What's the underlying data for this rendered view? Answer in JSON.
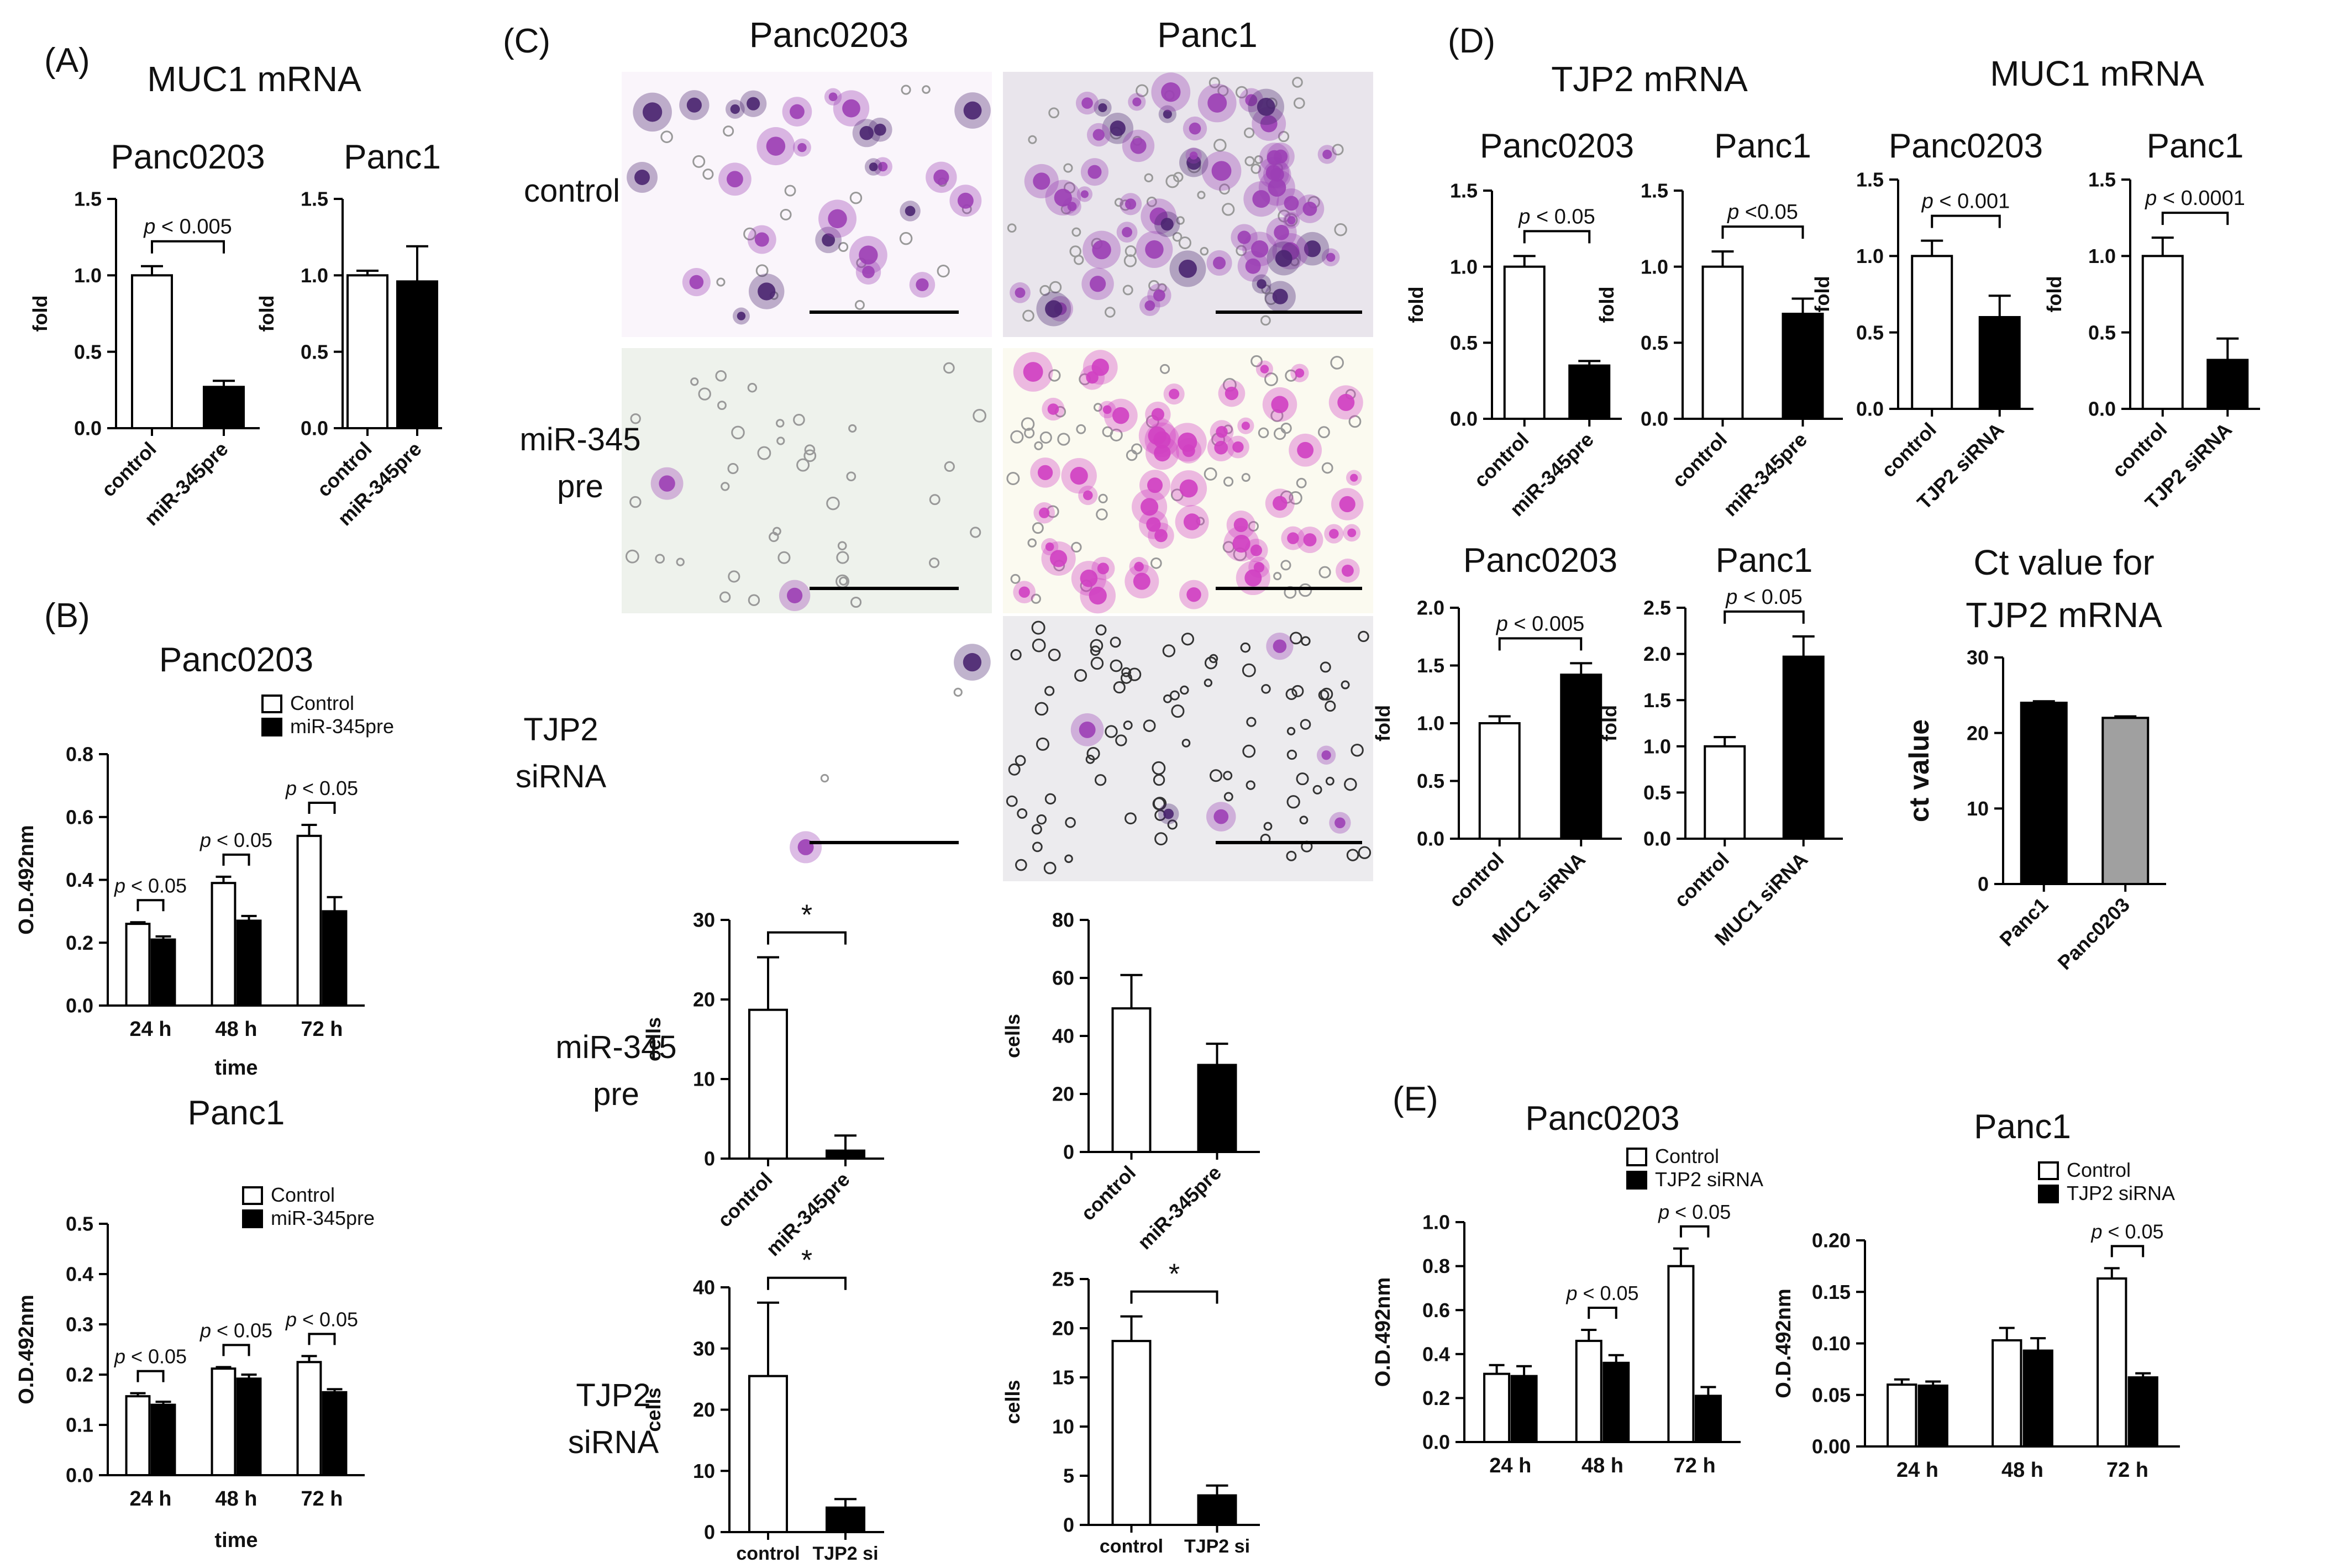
{
  "panel_labels": {
    "A": "(A)",
    "B": "(B)",
    "C": "(C)",
    "D": "(D)",
    "E": "(E)"
  },
  "titles": {
    "A_main": "MUC1 mRNA",
    "C_col1": "Panc0203",
    "C_col2": "Panc1",
    "D_tjp2": "TJP2 mRNA",
    "D_muc1": "MUC1 mRNA",
    "D_ct_line1": "Ct value for",
    "D_ct_line2": "TJP2 mRNA"
  },
  "micrograph_row_labels": [
    {
      "lines": [
        "control"
      ]
    },
    {
      "lines": [
        "miR-345",
        "pre"
      ]
    },
    {
      "lines": [
        "TJP2",
        "siRNA"
      ]
    }
  ],
  "invasion_row_labels": [
    {
      "lines": [
        "miR-345",
        "pre"
      ]
    },
    {
      "lines": [
        "TJP2",
        "siRNA"
      ]
    }
  ],
  "micrograph_tiles": [
    {
      "col": 0,
      "row": 0,
      "bg": "#faf5fb",
      "stain": "sparse-cluster"
    },
    {
      "col": 1,
      "row": 0,
      "bg": "#e9e5ec",
      "stain": "dense"
    },
    {
      "col": 0,
      "row": 1,
      "bg": "#eef2ec",
      "stain": "very-sparse"
    },
    {
      "col": 1,
      "row": 1,
      "bg": "#fbfaf0",
      "stain": "dense-pink"
    },
    {
      "col": 0,
      "row": 2,
      "bg": "#ffffff",
      "stain": "empty"
    },
    {
      "col": 1,
      "row": 2,
      "bg": "#ecebee",
      "stain": "sparse-pores"
    }
  ],
  "colors": {
    "white_bar": "#ffffff",
    "black_bar": "#000000",
    "grey_bar": "#a0a0a0",
    "axis": "#000000",
    "stain_purple": "#9c3fb5",
    "stain_magenta": "#d03fc2",
    "stain_dark": "#4a2570"
  },
  "chart_data": [
    {
      "id": "A1",
      "type": "bar",
      "title": "Panc0203",
      "ylabel": "fold",
      "categories": [
        "control",
        "miR-345pre"
      ],
      "values": [
        1.0,
        0.27
      ],
      "errors": [
        0.06,
        0.04
      ],
      "fills": [
        "white",
        "black"
      ],
      "ylim": [
        0,
        1.5
      ],
      "yticks": [
        "0.0",
        "0.5",
        "1.0",
        "1.5"
      ],
      "sig": "p < 0.005"
    },
    {
      "id": "A2",
      "type": "bar",
      "title": "Panc1",
      "ylabel": "fold",
      "categories": [
        "control",
        "miR-345pre"
      ],
      "values": [
        1.0,
        0.96
      ],
      "errors": [
        0.03,
        0.23
      ],
      "fills": [
        "white",
        "black"
      ],
      "ylim": [
        0,
        1.5
      ],
      "yticks": [
        "0.0",
        "0.5",
        "1.0",
        "1.5"
      ],
      "sig": ""
    },
    {
      "id": "B1",
      "type": "grouped-bar",
      "title": "Panc0203",
      "ylabel": "O.D.492nm",
      "xlabel": "time",
      "categories": [
        "24 h",
        "48 h",
        "72 h"
      ],
      "series": [
        {
          "name": "Control",
          "values": [
            0.26,
            0.39,
            0.54
          ],
          "errors": [
            0.005,
            0.02,
            0.035
          ]
        },
        {
          "name": "miR-345pre",
          "values": [
            0.21,
            0.27,
            0.3
          ],
          "errors": [
            0.01,
            0.015,
            0.045
          ]
        }
      ],
      "ylim": [
        0,
        0.8
      ],
      "yticks": [
        "0.0",
        "0.2",
        "0.4",
        "0.6",
        "0.8"
      ],
      "sigs": [
        "p < 0.05",
        "p < 0.05",
        "p < 0.05"
      ]
    },
    {
      "id": "B2",
      "type": "grouped-bar",
      "title": "Panc1",
      "ylabel": "O.D.492nm",
      "xlabel": "time",
      "categories": [
        "24 h",
        "48 h",
        "72 h"
      ],
      "series": [
        {
          "name": "Control",
          "values": [
            0.157,
            0.212,
            0.225
          ],
          "errors": [
            0.006,
            0.003,
            0.012
          ]
        },
        {
          "name": "miR-345pre",
          "values": [
            0.14,
            0.192,
            0.165
          ],
          "errors": [
            0.006,
            0.008,
            0.006
          ]
        }
      ],
      "ylim": [
        0,
        0.5
      ],
      "yticks": [
        "0.0",
        "0.1",
        "0.2",
        "0.3",
        "0.4",
        "0.5"
      ],
      "sigs": [
        "p < 0.05",
        "p < 0.05",
        "p < 0.05"
      ]
    },
    {
      "id": "C1",
      "type": "bar",
      "title": "",
      "ylabel": "cells",
      "categories": [
        "control",
        "miR-345pre"
      ],
      "values": [
        18.7,
        1.0
      ],
      "errors": [
        6.6,
        1.9
      ],
      "fills": [
        "white",
        "black"
      ],
      "ylim": [
        0,
        30
      ],
      "yticks": [
        "0",
        "10",
        "20",
        "30"
      ],
      "sig": "*"
    },
    {
      "id": "C2",
      "type": "bar",
      "title": "",
      "ylabel": "cells",
      "categories": [
        "control",
        "miR-345pre"
      ],
      "values": [
        49.5,
        30.0
      ],
      "errors": [
        11.5,
        7.3
      ],
      "fills": [
        "white",
        "black"
      ],
      "ylim": [
        0,
        80
      ],
      "yticks": [
        "0",
        "20",
        "40",
        "60",
        "80"
      ],
      "sig": ""
    },
    {
      "id": "C3",
      "type": "bar",
      "title": "",
      "ylabel": "cells",
      "categories": [
        "control",
        "TJP2 si"
      ],
      "values": [
        25.5,
        4.0
      ],
      "errors": [
        12.0,
        1.4
      ],
      "fills": [
        "white",
        "black"
      ],
      "ylim": [
        0,
        40
      ],
      "yticks": [
        "0",
        "10",
        "20",
        "30",
        "40"
      ],
      "sig": "*"
    },
    {
      "id": "C4",
      "type": "bar",
      "title": "",
      "ylabel": "cells",
      "categories": [
        "control",
        "TJP2 si"
      ],
      "values": [
        18.7,
        3.0
      ],
      "errors": [
        2.5,
        1.0
      ],
      "fills": [
        "white",
        "black"
      ],
      "ylim": [
        0,
        25
      ],
      "yticks": [
        "0",
        "5",
        "10",
        "15",
        "20",
        "25"
      ],
      "sig": "*"
    },
    {
      "id": "D1",
      "type": "bar",
      "title": "Panc0203",
      "ylabel": "fold",
      "categories": [
        "control",
        "miR-345pre"
      ],
      "values": [
        1.0,
        0.35
      ],
      "errors": [
        0.07,
        0.03
      ],
      "fills": [
        "white",
        "black"
      ],
      "ylim": [
        0,
        1.5
      ],
      "yticks": [
        "0.0",
        "0.5",
        "1.0",
        "1.5"
      ],
      "sig": "p < 0.05"
    },
    {
      "id": "D2",
      "type": "bar",
      "title": "Panc1",
      "ylabel": "fold",
      "categories": [
        "control",
        "miR-345pre"
      ],
      "values": [
        1.0,
        0.69
      ],
      "errors": [
        0.1,
        0.1
      ],
      "fills": [
        "white",
        "black"
      ],
      "ylim": [
        0,
        1.5
      ],
      "yticks": [
        "0.0",
        "0.5",
        "1.0",
        "1.5"
      ],
      "sig": "p <0.05"
    },
    {
      "id": "D3",
      "type": "bar",
      "title": "Panc0203",
      "ylabel": "fold",
      "categories": [
        "control",
        "TJP2 siRNA"
      ],
      "values": [
        1.0,
        0.6
      ],
      "errors": [
        0.1,
        0.14
      ],
      "fills": [
        "white",
        "black"
      ],
      "ylim": [
        0,
        1.5
      ],
      "yticks": [
        "0.0",
        "0.5",
        "1.0",
        "1.5"
      ],
      "sig": "p < 0.001"
    },
    {
      "id": "D4",
      "type": "bar",
      "title": "Panc1",
      "ylabel": "fold",
      "categories": [
        "control",
        "TJP2 siRNA"
      ],
      "values": [
        1.0,
        0.32
      ],
      "errors": [
        0.12,
        0.14
      ],
      "fills": [
        "white",
        "black"
      ],
      "ylim": [
        0,
        1.5
      ],
      "yticks": [
        "0.0",
        "0.5",
        "1.0",
        "1.5"
      ],
      "sig": "p < 0.0001"
    },
    {
      "id": "D5",
      "type": "bar",
      "title": "Panc0203",
      "ylabel": "fold",
      "categories": [
        "control",
        "MUC1 siRNA"
      ],
      "values": [
        1.0,
        1.42
      ],
      "errors": [
        0.06,
        0.1
      ],
      "fills": [
        "white",
        "black"
      ],
      "ylim": [
        0,
        2.0
      ],
      "yticks": [
        "0.0",
        "0.5",
        "1.0",
        "1.5",
        "2.0"
      ],
      "sig": "p < 0.005"
    },
    {
      "id": "D6",
      "type": "bar",
      "title": "Panc1",
      "ylabel": "fold",
      "categories": [
        "control",
        "MUC1 siRNA"
      ],
      "values": [
        1.0,
        1.97
      ],
      "errors": [
        0.1,
        0.22
      ],
      "fills": [
        "white",
        "black"
      ],
      "ylim": [
        0,
        2.5
      ],
      "yticks": [
        "0.0",
        "0.5",
        "1.0",
        "1.5",
        "2.0",
        "2.5"
      ],
      "sig": "p < 0.05"
    },
    {
      "id": "D7",
      "type": "bar",
      "title": "",
      "ylabel": "ct value",
      "categories": [
        "Panc1",
        "Panc0203"
      ],
      "values": [
        24.0,
        22.0
      ],
      "errors": [
        0.2,
        0.2
      ],
      "fills": [
        "black",
        "grey"
      ],
      "ylim": [
        0,
        30
      ],
      "yticks": [
        "0",
        "10",
        "20",
        "30"
      ],
      "sig": ""
    },
    {
      "id": "E1",
      "type": "grouped-bar",
      "title": "Panc0203",
      "ylabel": "O.D.492nm",
      "xlabel": "",
      "categories": [
        "24 h",
        "48 h",
        "72 h"
      ],
      "series": [
        {
          "name": "Control",
          "values": [
            0.31,
            0.46,
            0.8
          ],
          "errors": [
            0.04,
            0.05,
            0.08
          ]
        },
        {
          "name": "TJP2 siRNA",
          "values": [
            0.3,
            0.36,
            0.21
          ],
          "errors": [
            0.045,
            0.035,
            0.04
          ]
        }
      ],
      "ylim": [
        0,
        1.0
      ],
      "yticks": [
        "0.0",
        "0.2",
        "0.4",
        "0.6",
        "0.8",
        "1.0"
      ],
      "sigs": [
        "",
        "p < 0.05",
        "p < 0.05"
      ]
    },
    {
      "id": "E2",
      "type": "grouped-bar",
      "title": "Panc1",
      "ylabel": "O.D.492nm",
      "xlabel": "",
      "categories": [
        "24 h",
        "48 h",
        "72 h"
      ],
      "series": [
        {
          "name": "Control",
          "values": [
            0.06,
            0.103,
            0.163
          ],
          "errors": [
            0.005,
            0.012,
            0.01
          ]
        },
        {
          "name": "TJP2 siRNA",
          "values": [
            0.059,
            0.093,
            0.067
          ],
          "errors": [
            0.004,
            0.012,
            0.004
          ]
        }
      ],
      "ylim": [
        0,
        0.2
      ],
      "yticks": [
        "0.00",
        "0.05",
        "0.10",
        "0.15",
        "0.20"
      ],
      "sigs": [
        "",
        "",
        "p < 0.05"
      ]
    }
  ]
}
